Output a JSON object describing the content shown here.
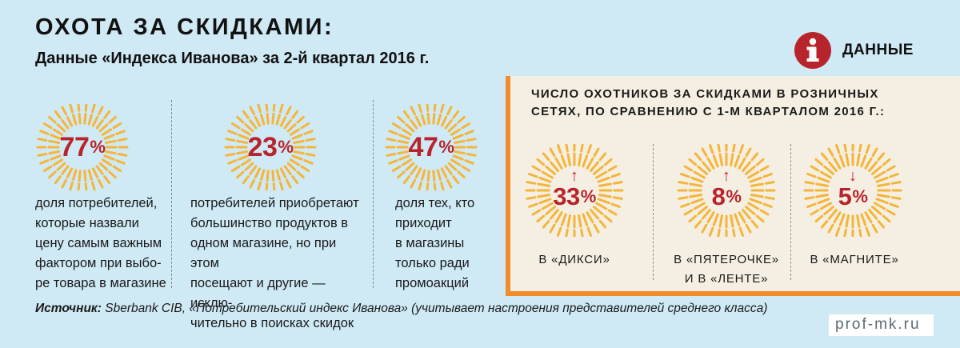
{
  "header": {
    "title": "ОХОТА ЗА СКИДКАМИ:",
    "subtitle": "Данные «Индекса Иванова» за 2-й квартал 2016 г."
  },
  "badge": {
    "label": "ДАННЫЕ",
    "icon": "info-icon"
  },
  "stats": [
    {
      "value": "77",
      "sign": "%",
      "lines": [
        "доля потребителей,",
        "которые назвали",
        "цену самым важным",
        "фактором при выбо-",
        "ре товара в магазине"
      ]
    },
    {
      "value": "23",
      "sign": "%",
      "lines": [
        "потребителей приобретают",
        "большинство продуктов в",
        "одном магазине, но при этом",
        "посещают и другие — исклю-",
        "чительно в поисках скидок"
      ]
    },
    {
      "value": "47",
      "sign": "%",
      "lines": [
        "доля тех, кто",
        "приходит",
        "в магазины",
        "только ради",
        "промоакций"
      ]
    }
  ],
  "panel": {
    "title_lines": [
      "ЧИСЛО ОХОТНИКОВ ЗА СКИДКАМИ В РОЗНИЧНЫХ",
      "СЕТЯХ, ПО СРАВНЕНИЮ С 1-М КВАРТАЛОМ 2016 Г.:"
    ],
    "items": [
      {
        "value": "33",
        "sign": "%",
        "arrow": "↑",
        "direction": "up",
        "lines": [
          "В «ДИКСИ»"
        ]
      },
      {
        "value": "8",
        "sign": "%",
        "arrow": "↑",
        "direction": "up",
        "lines": [
          "В «ПЯТЕРОЧКЕ»",
          "И В «ЛЕНТЕ»"
        ]
      },
      {
        "value": "5",
        "sign": "%",
        "arrow": "↓",
        "direction": "down",
        "lines": [
          "В «МАГНИТЕ»"
        ]
      }
    ]
  },
  "source": {
    "label": "Источник:",
    "text": " Sberbank CIB, «Потребительский индекс Иванова» (учитывает настроения представителей среднего класса)"
  },
  "site": "prof-mk.ru",
  "colors": {
    "background": "#cfe9f5",
    "accent_red": "#b8242b",
    "ray_orange": "#f5b53a",
    "panel_bg": "#f4efe2",
    "panel_border": "#f08c2a"
  }
}
